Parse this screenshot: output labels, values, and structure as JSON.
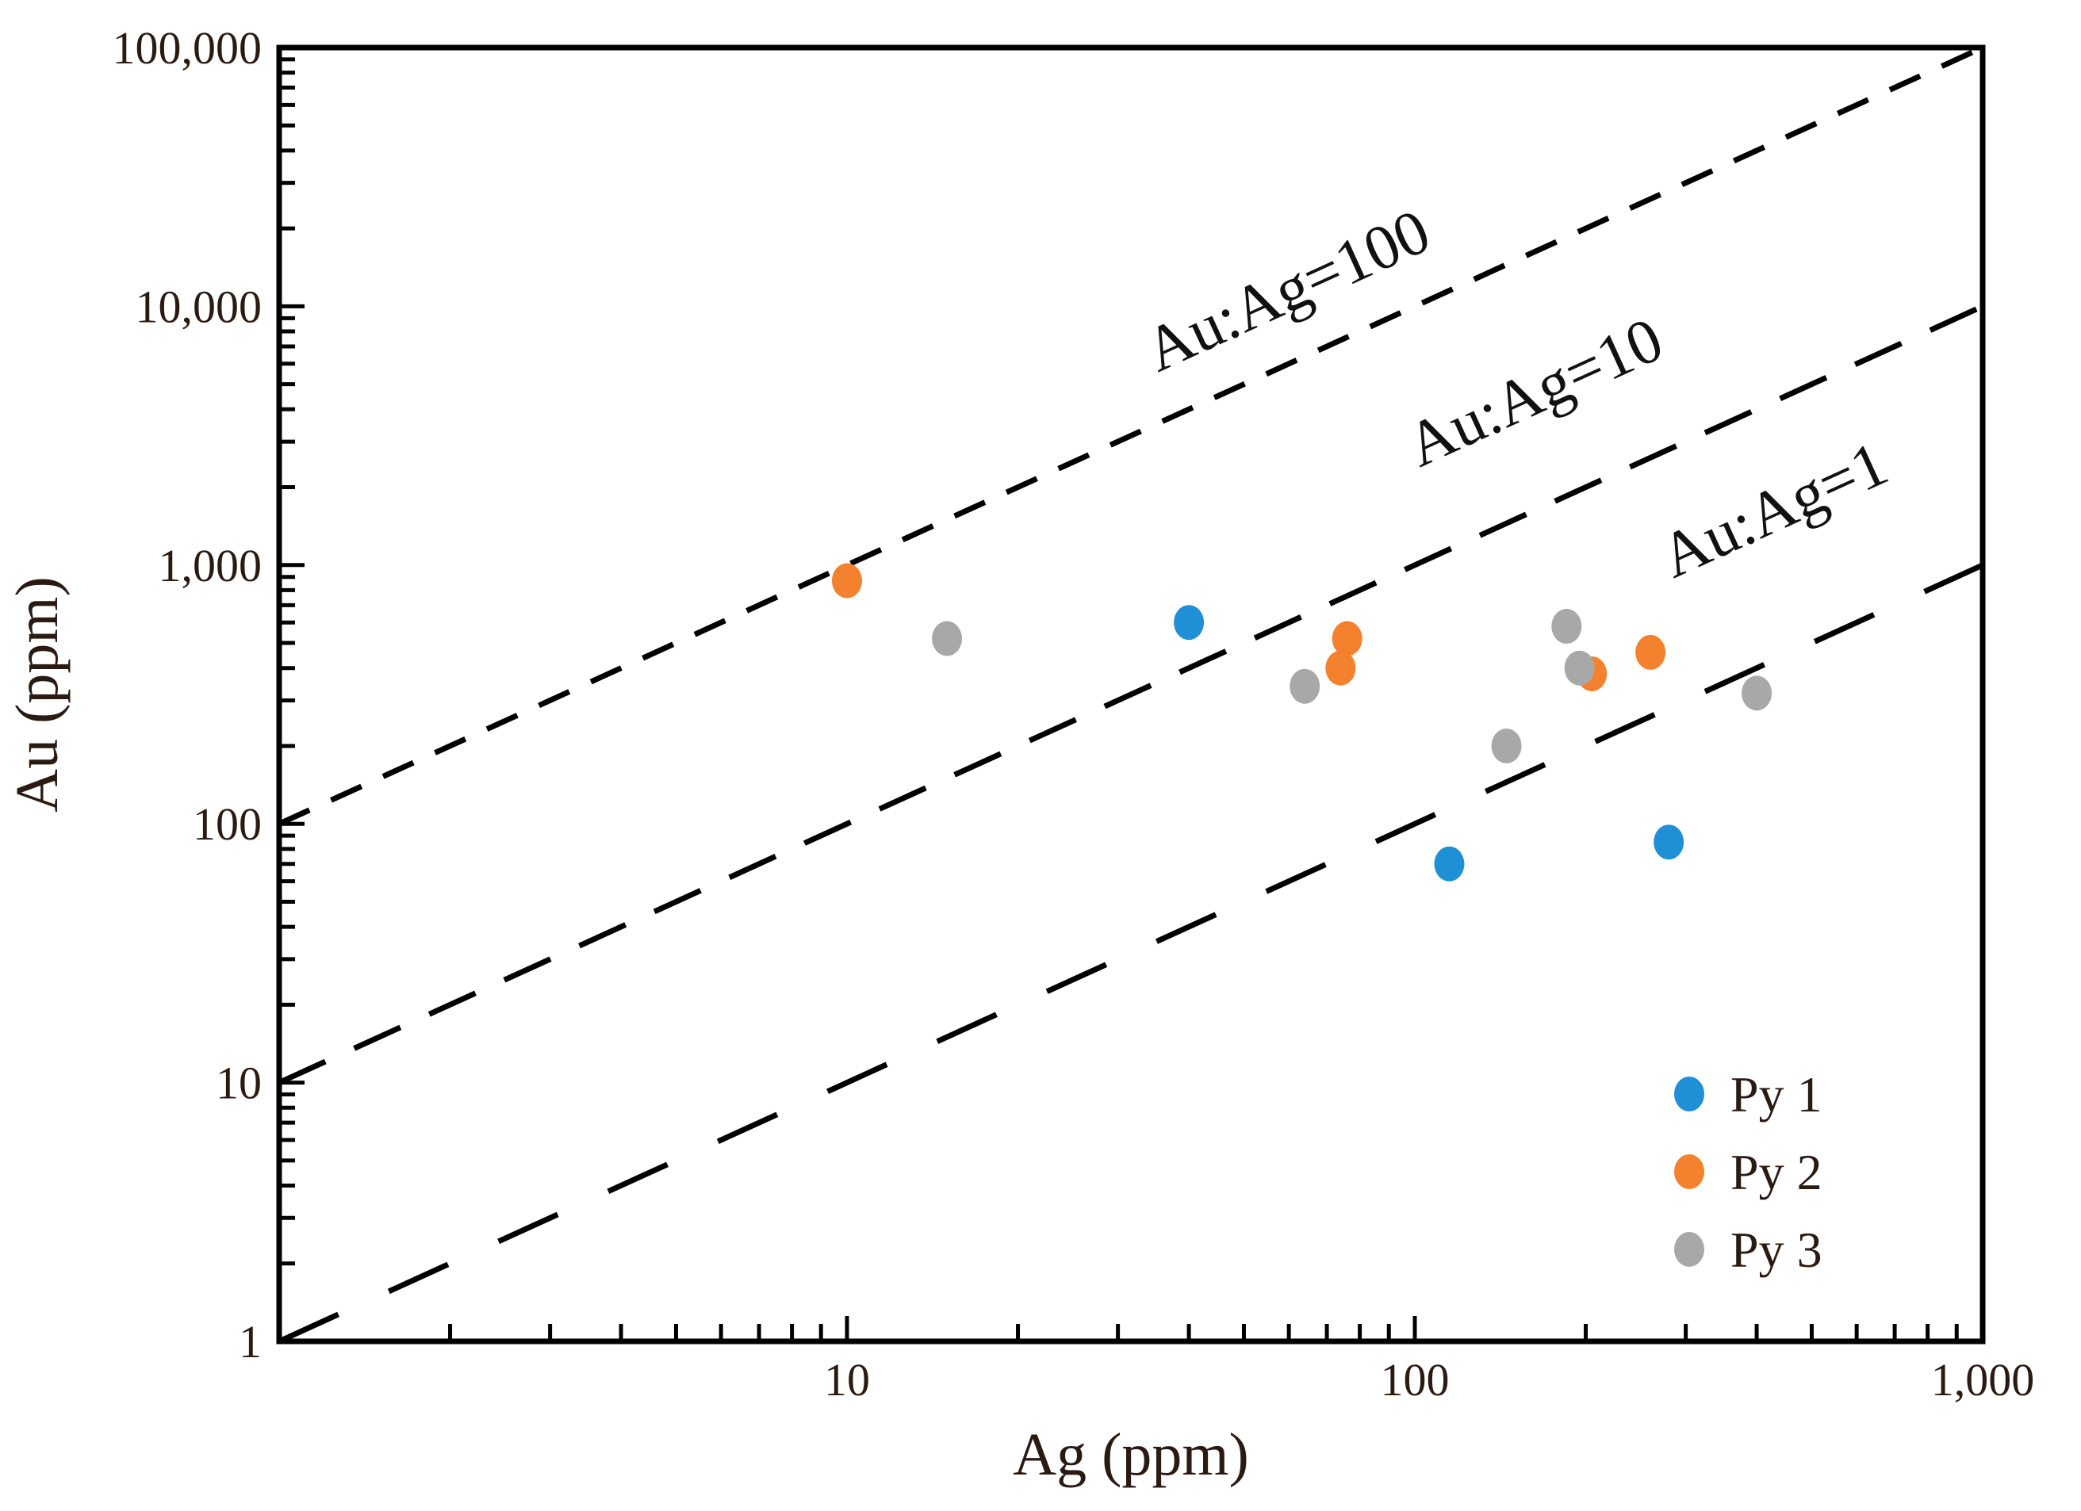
{
  "chart_data": {
    "type": "scatter",
    "x_scale": "log",
    "y_scale": "log",
    "xlabel": "Ag (ppm)",
    "ylabel": "Au (ppm)",
    "xlim": [
      1,
      1000
    ],
    "ylim": [
      1,
      100000
    ],
    "x_tick_labels": [
      {
        "value": 10,
        "label": "10"
      },
      {
        "value": 100,
        "label": "100"
      },
      {
        "value": 1000,
        "label": "1,000"
      }
    ],
    "y_tick_labels": [
      {
        "value": 1,
        "label": "1"
      },
      {
        "value": 10,
        "label": "10"
      },
      {
        "value": 100,
        "label": "100"
      },
      {
        "value": 1000,
        "label": "1,000"
      },
      {
        "value": 10000,
        "label": "10,000"
      },
      {
        "value": 100000,
        "label": "100,000"
      }
    ],
    "grid": false,
    "legend_position": "bottom-right",
    "series": [
      {
        "name": "Py 1",
        "color": "#1f8fd6",
        "points": [
          [
            40,
            600
          ],
          [
            115,
            70
          ],
          [
            280,
            85
          ]
        ]
      },
      {
        "name": "Py 2",
        "color": "#f4812e",
        "points": [
          [
            10,
            870
          ],
          [
            74,
            400
          ],
          [
            76,
            520
          ],
          [
            205,
            380
          ],
          [
            260,
            460
          ]
        ]
      },
      {
        "name": "Py 3",
        "color": "#a8a8a8",
        "points": [
          [
            15,
            520
          ],
          [
            64,
            340
          ],
          [
            145,
            200
          ],
          [
            185,
            580
          ],
          [
            195,
            400
          ],
          [
            400,
            320
          ]
        ]
      }
    ],
    "reference_lines": [
      {
        "label": "Au:Ag=100",
        "ratio": 100
      },
      {
        "label": "Au:Ag=10",
        "ratio": 10
      },
      {
        "label": "Au:Ag=1",
        "ratio": 1
      }
    ]
  }
}
